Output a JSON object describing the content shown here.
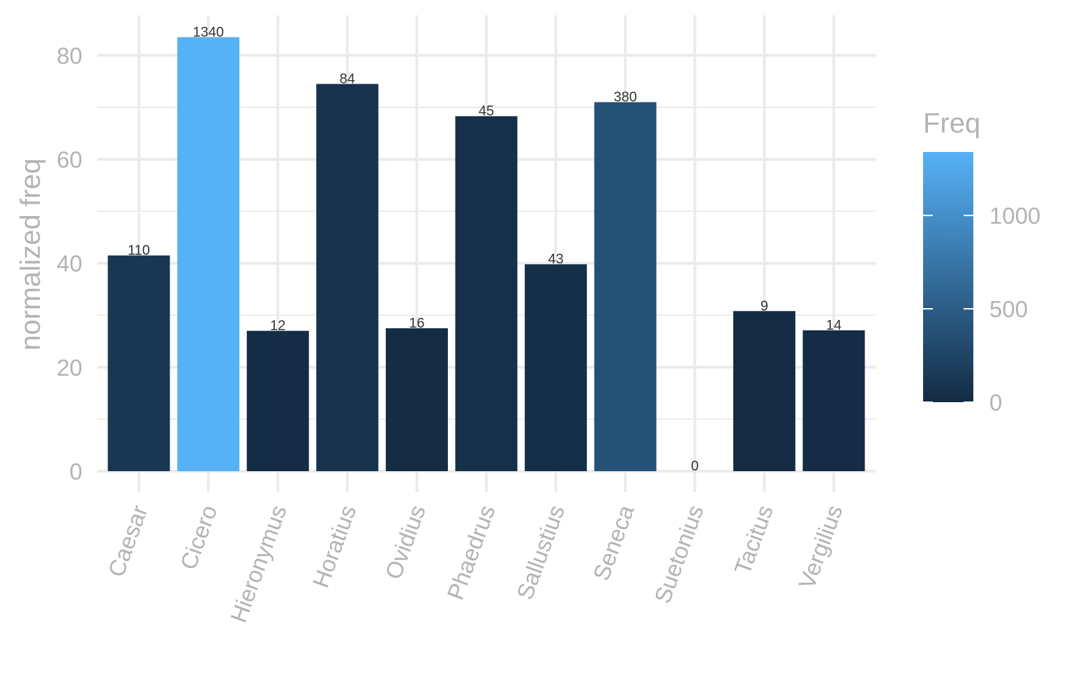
{
  "chart_data": {
    "type": "bar",
    "categories": [
      "Caesar",
      "Cicero",
      "Hieronymus",
      "Horatius",
      "Ovidius",
      "Phaedrus",
      "Sallustius",
      "Seneca",
      "Suetonius",
      "Tacitus",
      "Vergilius"
    ],
    "values": [
      41.5,
      83.5,
      27,
      74.5,
      27.5,
      68.3,
      39.8,
      71,
      0,
      30.8,
      27.1
    ],
    "freq": [
      110,
      1340,
      12,
      84,
      16,
      45,
      43,
      380,
      0,
      9,
      14
    ],
    "bar_labels": [
      "110",
      "1340",
      "12",
      "84",
      "16",
      "45",
      "43",
      "380",
      "0",
      "9",
      "14"
    ],
    "xlabel": "",
    "ylabel": "normalized freq",
    "ylim": [
      0,
      87.7
    ],
    "yticks": [
      0,
      20,
      40,
      60,
      80
    ],
    "grid": true,
    "legend": {
      "title": "Freq",
      "placement": "right",
      "range": [
        0,
        1340
      ],
      "ticks": [
        0,
        500,
        1000
      ],
      "tick_labels": [
        "0",
        "500",
        "1000"
      ],
      "low_color": "#132B43",
      "high_color": "#56B1F7"
    }
  }
}
